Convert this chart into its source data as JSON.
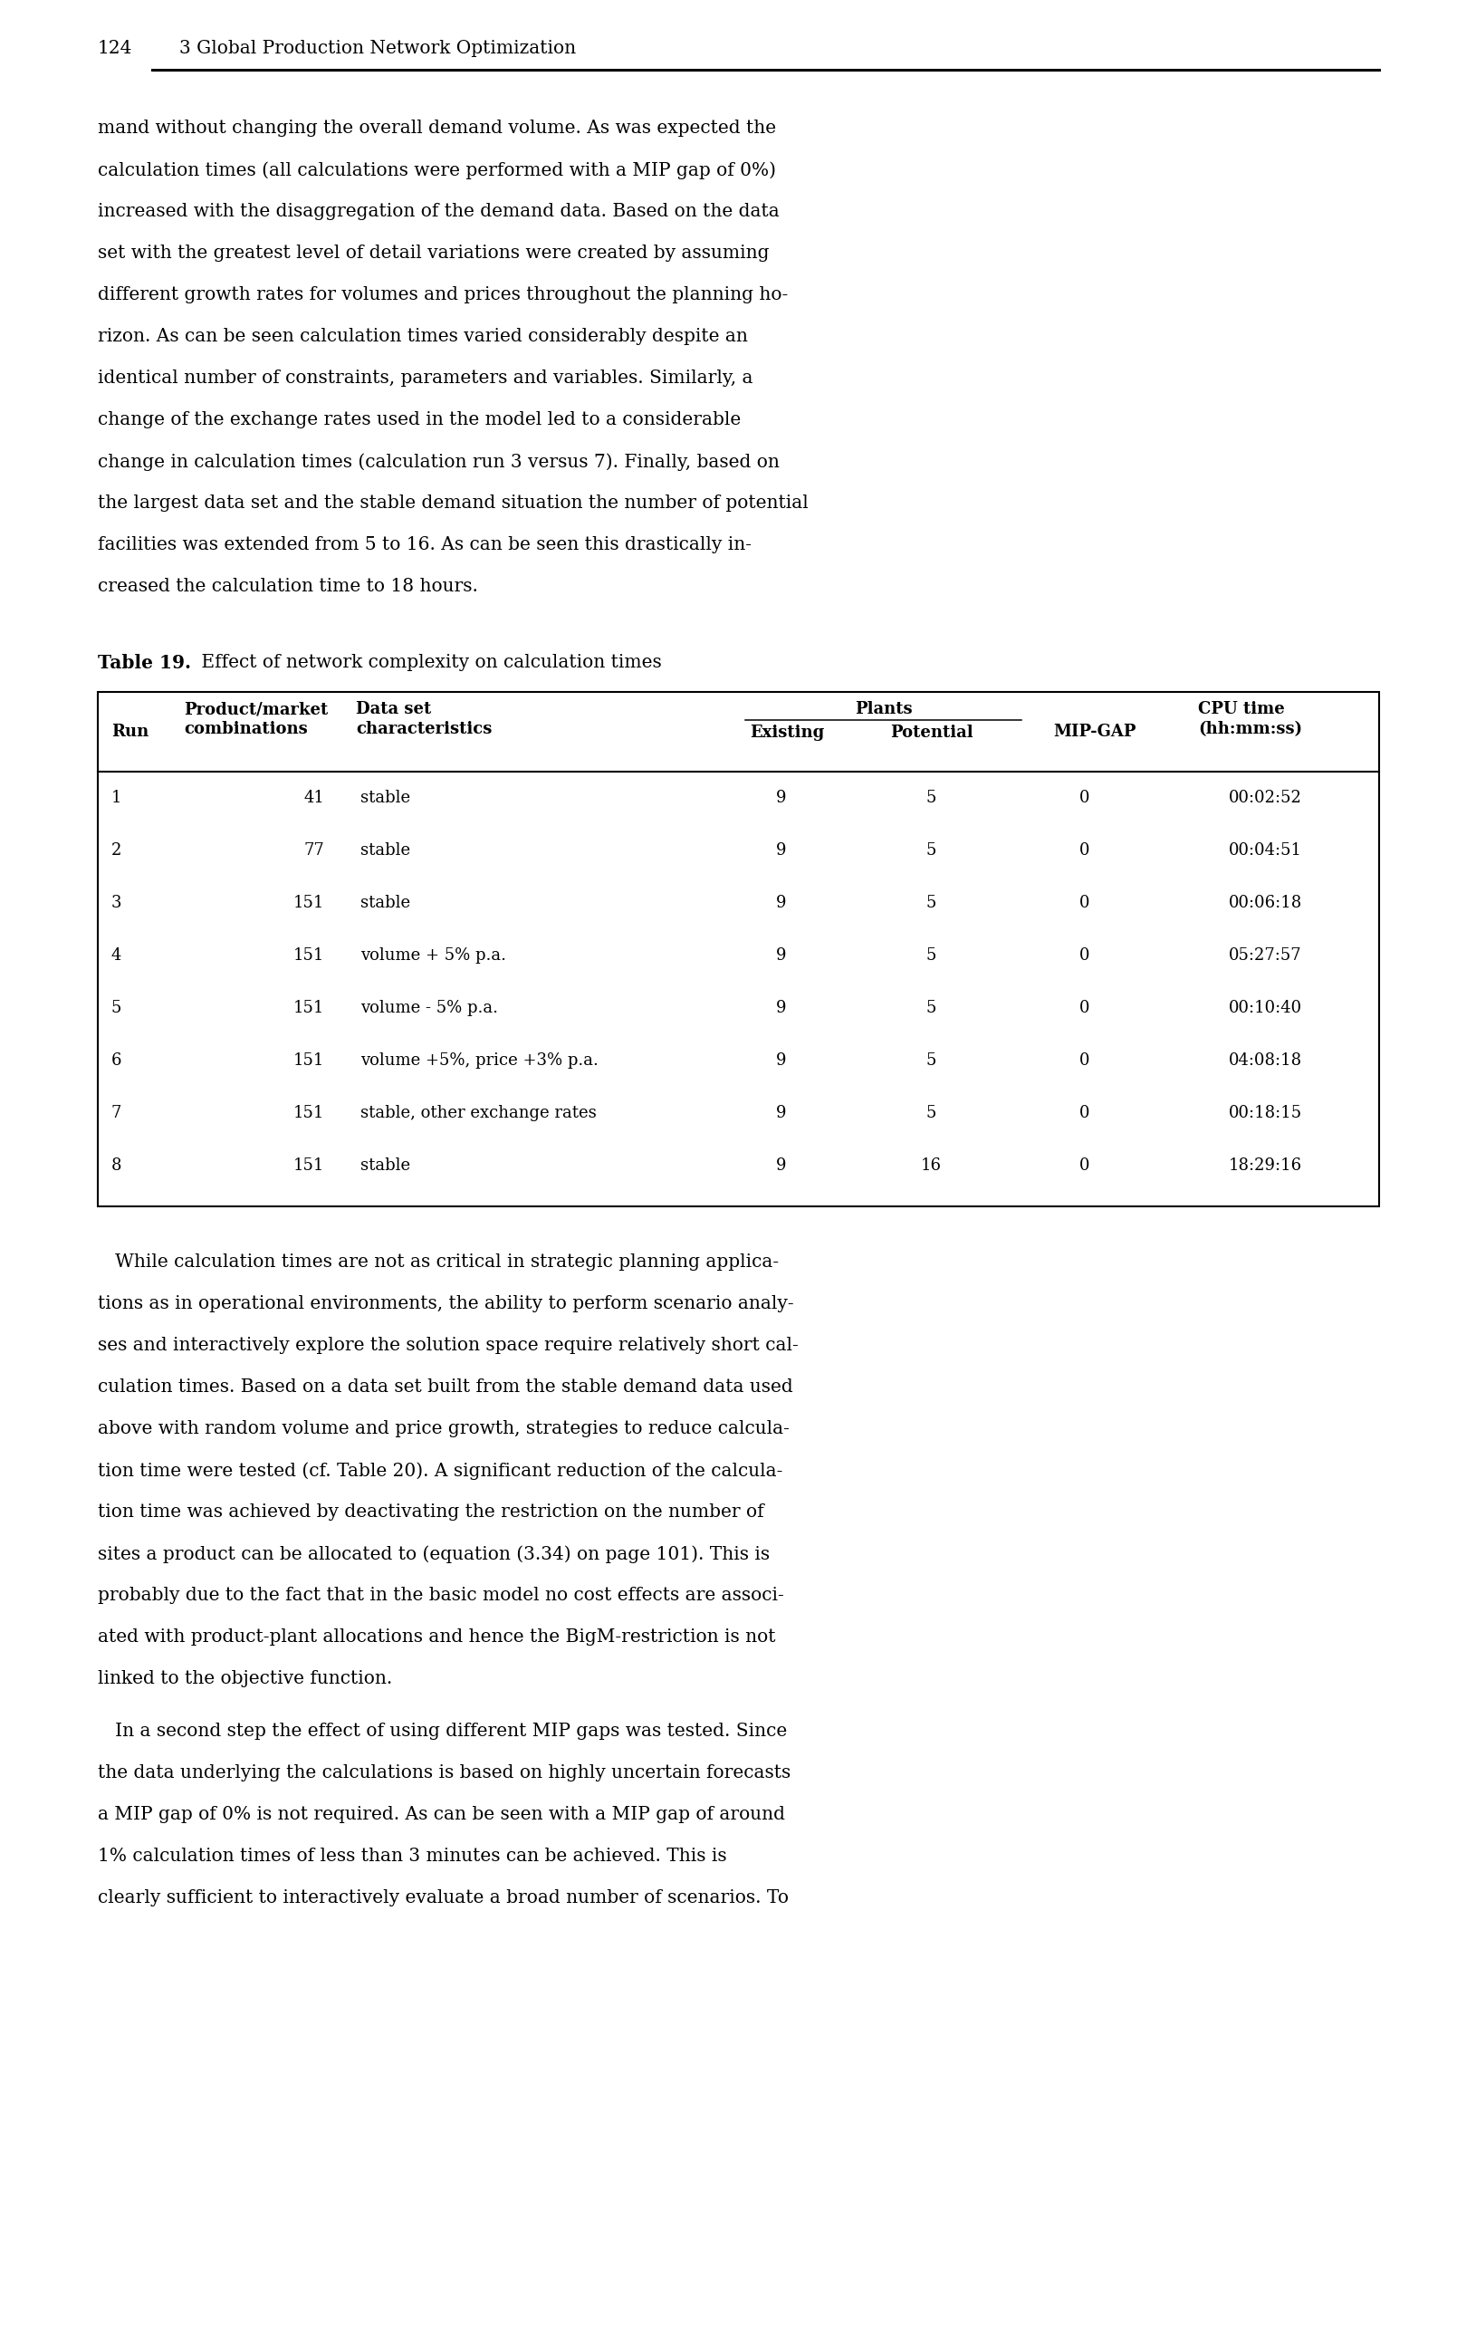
{
  "page_number": "124",
  "chapter_header": "3 Global Production Network Optimization",
  "background_color": "#ffffff",
  "text_color": "#000000",
  "para1_lines": [
    "mand without changing the overall demand volume. As was expected the",
    "calculation times (all calculations were performed with a MIP gap of 0%)",
    "increased with the disaggregation of the demand data. Based on the data",
    "set with the greatest level of detail variations were created by assuming",
    "different growth rates for volumes and prices throughout the planning ho-",
    "rizon. As can be seen calculation times varied considerably despite an",
    "identical number of constraints, parameters and variables. Similarly, a",
    "change of the exchange rates used in the model led to a considerable",
    "change in calculation times (calculation run 3 versus 7). Finally, based on",
    "the largest data set and the stable demand situation the number of potential",
    "facilities was extended from 5 to 16. As can be seen this drastically in-",
    "creased the calculation time to 18 hours."
  ],
  "table_data": [
    [
      "1",
      "41",
      "stable",
      "9",
      "5",
      "0",
      "00:02:52"
    ],
    [
      "2",
      "77",
      "stable",
      "9",
      "5",
      "0",
      "00:04:51"
    ],
    [
      "3",
      "151",
      "stable",
      "9",
      "5",
      "0",
      "00:06:18"
    ],
    [
      "4",
      "151",
      "volume + 5% p.a.",
      "9",
      "5",
      "0",
      "05:27:57"
    ],
    [
      "5",
      "151",
      "volume - 5% p.a.",
      "9",
      "5",
      "0",
      "00:10:40"
    ],
    [
      "6",
      "151",
      "volume +5%, price +3% p.a.",
      "9",
      "5",
      "0",
      "04:08:18"
    ],
    [
      "7",
      "151",
      "stable, other exchange rates",
      "9",
      "5",
      "0",
      "00:18:15"
    ],
    [
      "8",
      "151",
      "stable",
      "9",
      "16",
      "0",
      "18:29:16"
    ]
  ],
  "para2_lines": [
    "   While calculation times are not as critical in strategic planning applica-",
    "tions as in operational environments, the ability to perform scenario analy-",
    "ses and interactively explore the solution space require relatively short cal-",
    "culation times. Based on a data set built from the stable demand data used",
    "above with random volume and price growth, strategies to reduce calcula-",
    "tion time were tested (cf. Table 20). A significant reduction of the calcula-",
    "tion time was achieved by deactivating the restriction on the number of",
    "sites a product can be allocated to (equation (3.34) on page 101). This is",
    "probably due to the fact that in the basic model no cost effects are associ-",
    "ated with product-plant allocations and hence the BigM-restriction is not",
    "linked to the objective function."
  ],
  "para3_lines": [
    "   In a second step the effect of using different MIP gaps was tested. Since",
    "the data underlying the calculations is based on highly uncertain forecasts",
    "a MIP gap of 0% is not required. As can be seen with a MIP gap of around",
    "1% calculation times of less than 3 minutes can be achieved. This is",
    "clearly sufficient to interactively evaluate a broad number of scenarios. To"
  ],
  "body_fontsize": 14.5,
  "table_fontsize": 13.0,
  "header_fontsize": 14.0,
  "title_bold_text": "Table 19.",
  "title_normal_text": " Effect of network complexity on calculation times"
}
